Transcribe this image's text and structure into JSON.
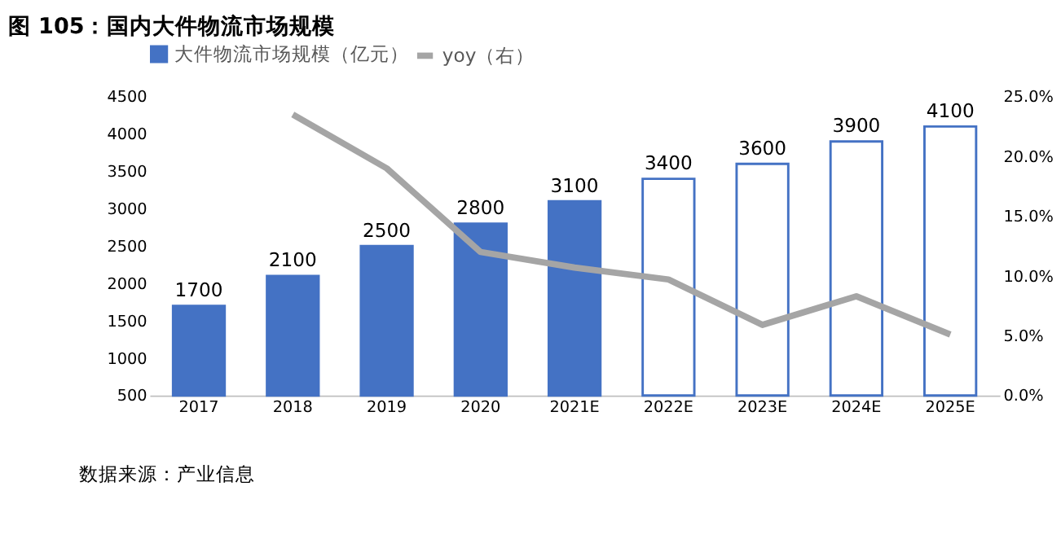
{
  "chart_data": {
    "type": "bar",
    "title": "图 105：国内大件物流市场规模",
    "categories": [
      "2017",
      "2018",
      "2019",
      "2020",
      "2021E",
      "2022E",
      "2023E",
      "2024E",
      "2025E"
    ],
    "series": [
      {
        "name": "大件物流市场规模（亿元）",
        "color": "#4472c4",
        "values": [
          1700,
          2100,
          2500,
          2800,
          3100,
          null,
          null,
          null,
          null
        ],
        "value_labels": [
          "1700",
          "2100",
          "2500",
          "2800",
          "3100",
          null,
          null,
          null,
          null
        ]
      },
      {
        "color": "#4472c4",
        "values": [
          null,
          null,
          null,
          null,
          null,
          3400,
          3600,
          3900,
          4100
        ],
        "value_labels": [
          null,
          null,
          null,
          null,
          null,
          "3400",
          "3600",
          "3900",
          "4100"
        ]
      },
      {
        "name": "yoy（右）",
        "type": "line",
        "axis": "y2",
        "color": "#a5a5a5",
        "values": [
          null,
          23.5,
          19.0,
          12.0,
          10.7,
          9.7,
          5.9,
          8.3,
          5.1
        ]
      }
    ],
    "ylim": [
      500,
      4500
    ],
    "yticks": [
      500,
      1000,
      1500,
      2000,
      2500,
      3000,
      3500,
      4000,
      4500
    ],
    "y2lim": [
      0,
      25
    ],
    "y2ticks": [
      {
        "value": 0,
        "label": "0.0%"
      },
      {
        "value": 5,
        "label": "5.0%"
      },
      {
        "value": 10,
        "label": "10.0%"
      },
      {
        "value": 15,
        "label": "15.0%"
      },
      {
        "value": 20,
        "label": "20.0%"
      },
      {
        "value": 25,
        "label": "25.0%"
      }
    ],
    "legend": "top",
    "grid": false,
    "marker": "none",
    "annotations": [
      "数据来源：产业信息"
    ]
  }
}
